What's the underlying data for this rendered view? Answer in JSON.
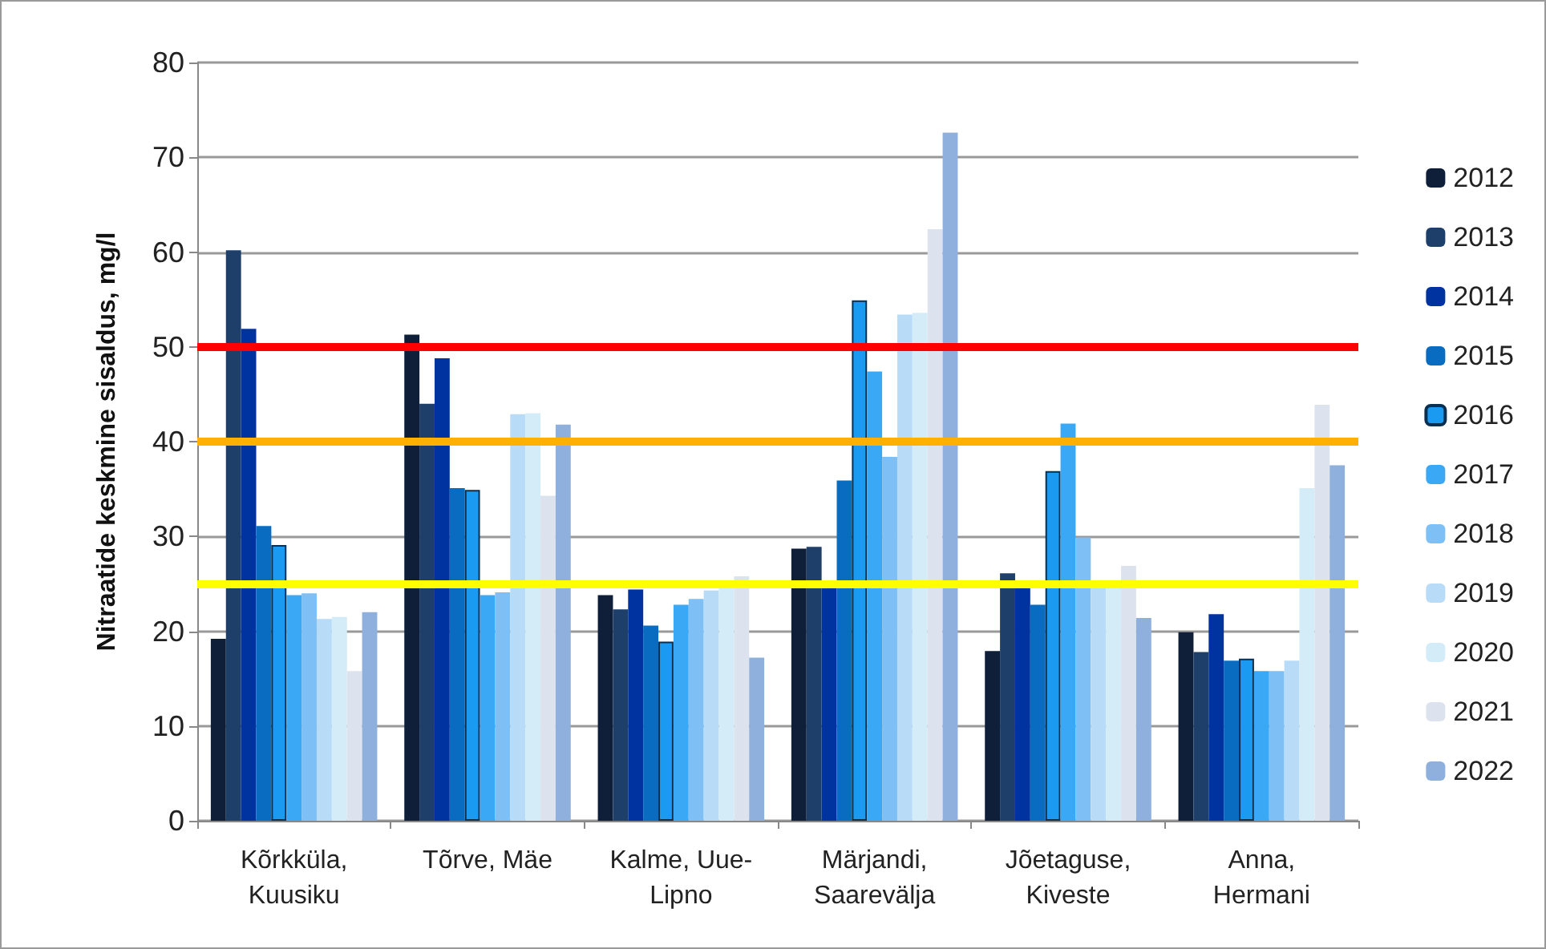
{
  "chart_data": {
    "type": "bar",
    "ylabel": "Nitraatide keskmine sisaldus, mg/l",
    "categories": [
      "Kõrkküla,\nKuusiku",
      "Tõrve, Mäe",
      "Kalme, Uue-\nLipno",
      "Märjandi,\nSaarevälja",
      "Jõetaguse,\nKiveste",
      "Anna,\nHermani"
    ],
    "series": [
      {
        "name": "2012",
        "color": "#0f1f3a",
        "values": [
          19.2,
          51.3,
          23.8,
          28.7,
          17.9,
          19.9
        ]
      },
      {
        "name": "2013",
        "color": "#1f3f6b",
        "values": [
          60.2,
          44.0,
          22.3,
          28.9,
          26.1,
          17.8
        ]
      },
      {
        "name": "2014",
        "color": "#0033a0",
        "values": [
          51.9,
          48.8,
          24.4,
          24.8,
          24.6,
          21.8
        ]
      },
      {
        "name": "2015",
        "color": "#0a6cc0",
        "values": [
          31.1,
          35.1,
          20.6,
          35.9,
          22.8,
          16.9
        ]
      },
      {
        "name": "2016",
        "color": "#1a9af0",
        "values": [
          29.1,
          34.9,
          18.9,
          54.9,
          36.9,
          17.1
        ]
      },
      {
        "name": "2017",
        "color": "#3aa8f5",
        "values": [
          23.8,
          23.8,
          22.8,
          47.4,
          41.9,
          15.8
        ]
      },
      {
        "name": "2018",
        "color": "#7ec0f5",
        "values": [
          24.0,
          24.1,
          23.4,
          38.4,
          29.9,
          15.8
        ]
      },
      {
        "name": "2019",
        "color": "#b8dcf7",
        "values": [
          21.3,
          42.9,
          24.3,
          53.4,
          24.8,
          16.9
        ]
      },
      {
        "name": "2020",
        "color": "#d4ecf8",
        "values": [
          21.5,
          43.0,
          24.8,
          53.6,
          24.8,
          35.1
        ]
      },
      {
        "name": "2021",
        "color": "#dde3ee",
        "values": [
          15.8,
          34.3,
          25.8,
          62.4,
          26.9,
          43.9
        ]
      },
      {
        "name": "2022",
        "color": "#8fb0dc",
        "values": [
          22.0,
          41.8,
          17.2,
          72.6,
          21.4,
          37.5
        ]
      }
    ],
    "ylim": [
      0,
      80
    ],
    "yticks": [
      0,
      10,
      20,
      30,
      40,
      50,
      60,
      70,
      80
    ],
    "grid": "y",
    "legend": "right",
    "ref_lines": [
      {
        "axis": "y",
        "value": 50,
        "color": "#ff0000"
      },
      {
        "axis": "y",
        "value": 40,
        "color": "#ffb000"
      },
      {
        "axis": "y",
        "value": 25,
        "color": "#ffff00"
      }
    ]
  }
}
